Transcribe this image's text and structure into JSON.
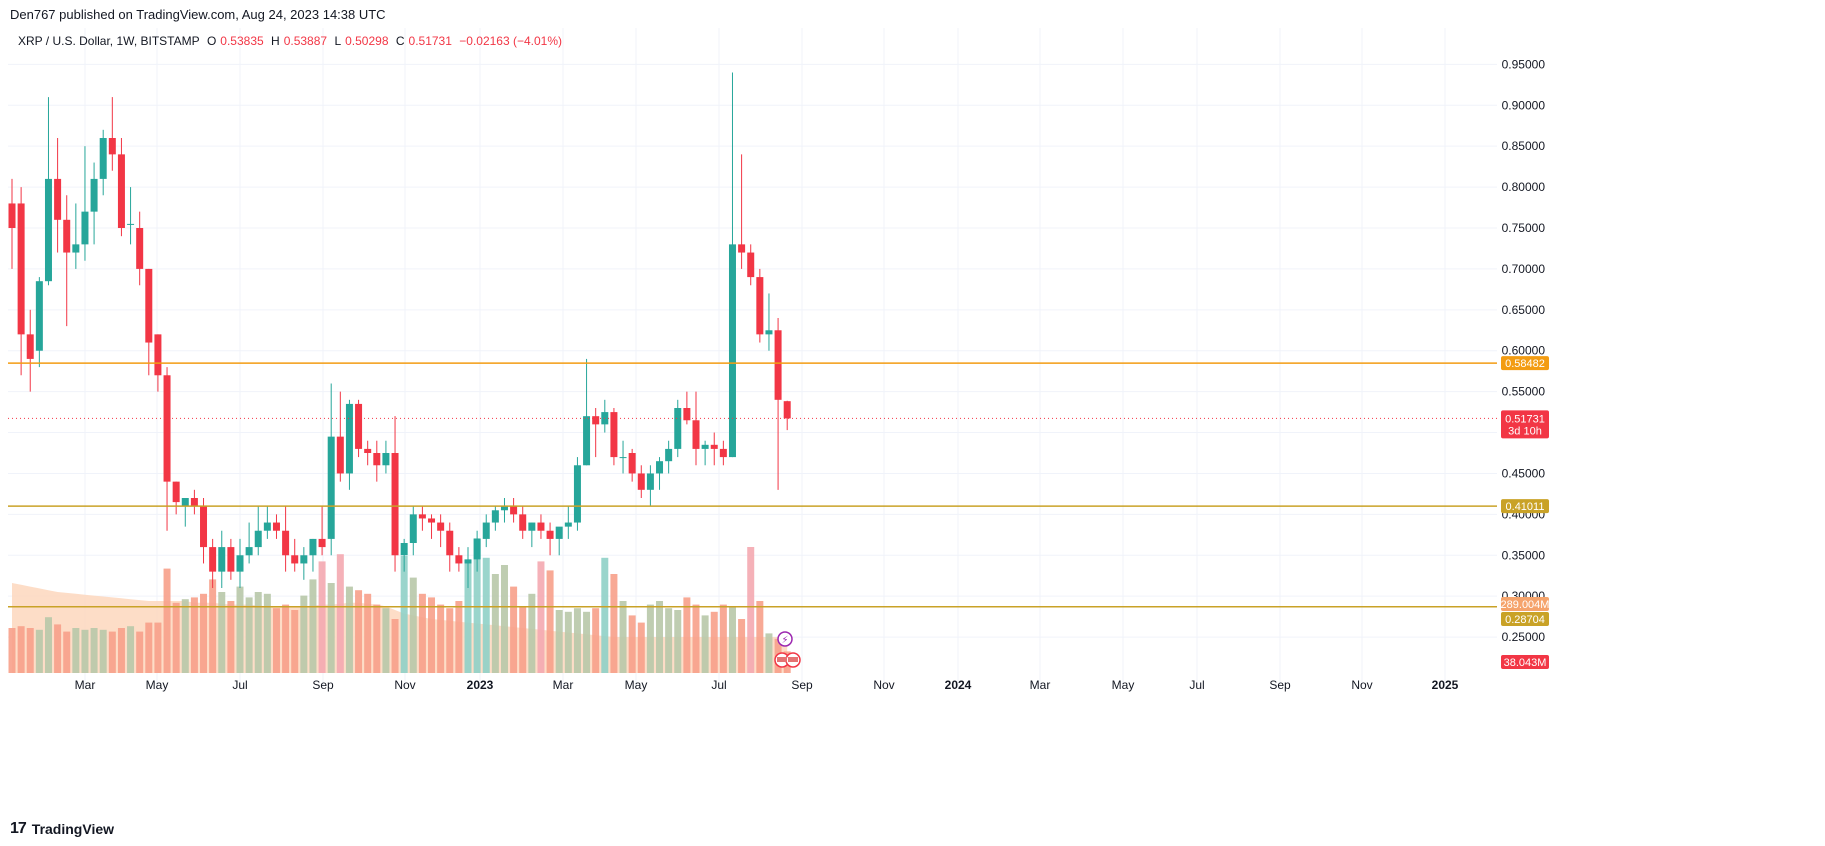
{
  "publisher_line": "Den767 published on TradingView.com, Aug 24, 2023 14:38 UTC",
  "legend": {
    "symbol": "XRP / U.S. Dollar, 1W, BITSTAMP",
    "open_label": "O",
    "open": "0.53835",
    "high_label": "H",
    "high": "0.53887",
    "low_label": "L",
    "low": "0.50298",
    "close_label": "C",
    "close": "0.51731",
    "change": "−0.02163 (−4.01%)"
  },
  "footer": {
    "brand": "TradingView",
    "logo_text": "17"
  },
  "colors": {
    "up": "#26a69a",
    "down": "#f23645",
    "level_orange": "#f39c12",
    "level_gold": "#c9a227",
    "volume_ma_fill": "#fdd7bd",
    "volume_up": "#b8c8a8",
    "volume_down": "#f7a08a"
  },
  "chart_data": {
    "type": "candlestick",
    "title": "",
    "y_axis": {
      "ylim": [
        0.2,
        0.97
      ],
      "ticks": [
        "0.25000",
        "0.30000",
        "0.35000",
        "0.40000",
        "0.45000",
        "0.50000",
        "0.55000",
        "0.60000",
        "0.65000",
        "0.70000",
        "0.75000",
        "0.80000",
        "0.85000",
        "0.90000",
        "0.95000"
      ],
      "grid": true,
      "position": "right"
    },
    "x_axis": {
      "ticks": [
        "Mar",
        "May",
        "Jul",
        "Sep",
        "Nov",
        "2023",
        "Mar",
        "May",
        "Jul",
        "Sep",
        "Nov",
        "2024",
        "Mar",
        "May",
        "Jul",
        "Sep",
        "Nov",
        "2025"
      ],
      "grid": true
    },
    "candles": [
      {
        "o": 0.78,
        "h": 0.81,
        "l": 0.7,
        "c": 0.75
      },
      {
        "o": 0.78,
        "h": 0.8,
        "l": 0.57,
        "c": 0.62
      },
      {
        "o": 0.62,
        "h": 0.65,
        "l": 0.55,
        "c": 0.59
      },
      {
        "o": 0.6,
        "h": 0.69,
        "l": 0.58,
        "c": 0.685
      },
      {
        "o": 0.685,
        "h": 0.91,
        "l": 0.68,
        "c": 0.81
      },
      {
        "o": 0.81,
        "h": 0.86,
        "l": 0.72,
        "c": 0.76
      },
      {
        "o": 0.76,
        "h": 0.79,
        "l": 0.63,
        "c": 0.72
      },
      {
        "o": 0.72,
        "h": 0.78,
        "l": 0.7,
        "c": 0.73
      },
      {
        "o": 0.73,
        "h": 0.85,
        "l": 0.71,
        "c": 0.77
      },
      {
        "o": 0.77,
        "h": 0.83,
        "l": 0.73,
        "c": 0.81
      },
      {
        "o": 0.81,
        "h": 0.87,
        "l": 0.79,
        "c": 0.86
      },
      {
        "o": 0.86,
        "h": 0.91,
        "l": 0.82,
        "c": 0.84
      },
      {
        "o": 0.84,
        "h": 0.86,
        "l": 0.74,
        "c": 0.75
      },
      {
        "o": 0.755,
        "h": 0.8,
        "l": 0.73,
        "c": 0.755
      },
      {
        "o": 0.75,
        "h": 0.77,
        "l": 0.68,
        "c": 0.7
      },
      {
        "o": 0.7,
        "h": 0.7,
        "l": 0.57,
        "c": 0.61
      },
      {
        "o": 0.62,
        "h": 0.62,
        "l": 0.55,
        "c": 0.57
      },
      {
        "o": 0.57,
        "h": 0.58,
        "l": 0.38,
        "c": 0.44
      },
      {
        "o": 0.44,
        "h": 0.44,
        "l": 0.4,
        "c": 0.415
      },
      {
        "o": 0.41,
        "h": 0.42,
        "l": 0.385,
        "c": 0.42
      },
      {
        "o": 0.42,
        "h": 0.43,
        "l": 0.4,
        "c": 0.41
      },
      {
        "o": 0.41,
        "h": 0.42,
        "l": 0.34,
        "c": 0.36
      },
      {
        "o": 0.36,
        "h": 0.37,
        "l": 0.31,
        "c": 0.33
      },
      {
        "o": 0.33,
        "h": 0.38,
        "l": 0.31,
        "c": 0.36
      },
      {
        "o": 0.36,
        "h": 0.37,
        "l": 0.32,
        "c": 0.33
      },
      {
        "o": 0.33,
        "h": 0.37,
        "l": 0.31,
        "c": 0.35
      },
      {
        "o": 0.35,
        "h": 0.39,
        "l": 0.34,
        "c": 0.36
      },
      {
        "o": 0.36,
        "h": 0.41,
        "l": 0.35,
        "c": 0.38
      },
      {
        "o": 0.38,
        "h": 0.41,
        "l": 0.37,
        "c": 0.39
      },
      {
        "o": 0.39,
        "h": 0.4,
        "l": 0.37,
        "c": 0.38
      },
      {
        "o": 0.38,
        "h": 0.41,
        "l": 0.33,
        "c": 0.35
      },
      {
        "o": 0.35,
        "h": 0.37,
        "l": 0.33,
        "c": 0.34
      },
      {
        "o": 0.34,
        "h": 0.36,
        "l": 0.32,
        "c": 0.35
      },
      {
        "o": 0.35,
        "h": 0.37,
        "l": 0.33,
        "c": 0.37
      },
      {
        "o": 0.37,
        "h": 0.41,
        "l": 0.35,
        "c": 0.36
      },
      {
        "o": 0.37,
        "h": 0.56,
        "l": 0.35,
        "c": 0.495
      },
      {
        "o": 0.495,
        "h": 0.55,
        "l": 0.44,
        "c": 0.45
      },
      {
        "o": 0.45,
        "h": 0.54,
        "l": 0.43,
        "c": 0.535
      },
      {
        "o": 0.535,
        "h": 0.54,
        "l": 0.47,
        "c": 0.48
      },
      {
        "o": 0.48,
        "h": 0.49,
        "l": 0.46,
        "c": 0.475
      },
      {
        "o": 0.475,
        "h": 0.49,
        "l": 0.44,
        "c": 0.46
      },
      {
        "o": 0.46,
        "h": 0.49,
        "l": 0.45,
        "c": 0.475
      },
      {
        "o": 0.475,
        "h": 0.52,
        "l": 0.33,
        "c": 0.35
      },
      {
        "o": 0.35,
        "h": 0.37,
        "l": 0.33,
        "c": 0.365
      },
      {
        "o": 0.365,
        "h": 0.41,
        "l": 0.35,
        "c": 0.4
      },
      {
        "o": 0.4,
        "h": 0.41,
        "l": 0.38,
        "c": 0.395
      },
      {
        "o": 0.395,
        "h": 0.4,
        "l": 0.37,
        "c": 0.39
      },
      {
        "o": 0.39,
        "h": 0.4,
        "l": 0.36,
        "c": 0.38
      },
      {
        "o": 0.38,
        "h": 0.39,
        "l": 0.33,
        "c": 0.35
      },
      {
        "o": 0.35,
        "h": 0.36,
        "l": 0.33,
        "c": 0.34
      },
      {
        "o": 0.34,
        "h": 0.36,
        "l": 0.31,
        "c": 0.345
      },
      {
        "o": 0.345,
        "h": 0.38,
        "l": 0.33,
        "c": 0.37
      },
      {
        "o": 0.37,
        "h": 0.4,
        "l": 0.36,
        "c": 0.39
      },
      {
        "o": 0.39,
        "h": 0.41,
        "l": 0.38,
        "c": 0.405
      },
      {
        "o": 0.405,
        "h": 0.42,
        "l": 0.39,
        "c": 0.41
      },
      {
        "o": 0.41,
        "h": 0.42,
        "l": 0.39,
        "c": 0.4
      },
      {
        "o": 0.4,
        "h": 0.41,
        "l": 0.37,
        "c": 0.38
      },
      {
        "o": 0.38,
        "h": 0.39,
        "l": 0.36,
        "c": 0.39
      },
      {
        "o": 0.39,
        "h": 0.4,
        "l": 0.37,
        "c": 0.38
      },
      {
        "o": 0.38,
        "h": 0.39,
        "l": 0.35,
        "c": 0.37
      },
      {
        "o": 0.37,
        "h": 0.38,
        "l": 0.35,
        "c": 0.385
      },
      {
        "o": 0.385,
        "h": 0.41,
        "l": 0.37,
        "c": 0.39
      },
      {
        "o": 0.39,
        "h": 0.47,
        "l": 0.38,
        "c": 0.46
      },
      {
        "o": 0.46,
        "h": 0.59,
        "l": 0.46,
        "c": 0.52
      },
      {
        "o": 0.52,
        "h": 0.53,
        "l": 0.47,
        "c": 0.51
      },
      {
        "o": 0.51,
        "h": 0.54,
        "l": 0.5,
        "c": 0.525
      },
      {
        "o": 0.525,
        "h": 0.53,
        "l": 0.46,
        "c": 0.47
      },
      {
        "o": 0.47,
        "h": 0.49,
        "l": 0.45,
        "c": 0.47
      },
      {
        "o": 0.475,
        "h": 0.48,
        "l": 0.44,
        "c": 0.45
      },
      {
        "o": 0.45,
        "h": 0.46,
        "l": 0.42,
        "c": 0.43
      },
      {
        "o": 0.43,
        "h": 0.46,
        "l": 0.41,
        "c": 0.45
      },
      {
        "o": 0.45,
        "h": 0.47,
        "l": 0.43,
        "c": 0.465
      },
      {
        "o": 0.465,
        "h": 0.49,
        "l": 0.45,
        "c": 0.48
      },
      {
        "o": 0.48,
        "h": 0.54,
        "l": 0.47,
        "c": 0.53
      },
      {
        "o": 0.53,
        "h": 0.55,
        "l": 0.51,
        "c": 0.515
      },
      {
        "o": 0.515,
        "h": 0.55,
        "l": 0.46,
        "c": 0.48
      },
      {
        "o": 0.48,
        "h": 0.49,
        "l": 0.46,
        "c": 0.485
      },
      {
        "o": 0.485,
        "h": 0.5,
        "l": 0.46,
        "c": 0.48
      },
      {
        "o": 0.48,
        "h": 0.49,
        "l": 0.46,
        "c": 0.47
      },
      {
        "o": 0.47,
        "h": 0.94,
        "l": 0.47,
        "c": 0.73
      },
      {
        "o": 0.73,
        "h": 0.84,
        "l": 0.7,
        "c": 0.72
      },
      {
        "o": 0.72,
        "h": 0.73,
        "l": 0.68,
        "c": 0.69
      },
      {
        "o": 0.69,
        "h": 0.7,
        "l": 0.61,
        "c": 0.62
      },
      {
        "o": 0.62,
        "h": 0.67,
        "l": 0.6,
        "c": 0.625
      },
      {
        "o": 0.625,
        "h": 0.64,
        "l": 0.43,
        "c": 0.54
      },
      {
        "o": 0.53835,
        "h": 0.53887,
        "l": 0.50298,
        "c": 0.51731
      }
    ],
    "volume": {
      "label": "38.043M",
      "ma_label": "289.004M",
      "bars": [
        0.25,
        0.26,
        0.25,
        0.24,
        0.31,
        0.27,
        0.23,
        0.25,
        0.24,
        0.25,
        0.24,
        0.23,
        0.25,
        0.26,
        0.23,
        0.28,
        0.28,
        0.58,
        0.39,
        0.41,
        0.42,
        0.44,
        0.52,
        0.45,
        0.4,
        0.48,
        0.42,
        0.45,
        0.44,
        0.36,
        0.38,
        0.35,
        0.43,
        0.52,
        0.62,
        0.5,
        0.66,
        0.48,
        0.46,
        0.44,
        0.38,
        0.36,
        0.3,
        0.65,
        0.53,
        0.44,
        0.42,
        0.38,
        0.36,
        0.4,
        0.62,
        0.75,
        0.64,
        0.55,
        0.6,
        0.48,
        0.37,
        0.44,
        0.62,
        0.57,
        0.35,
        0.34,
        0.36,
        0.34,
        0.36,
        0.64,
        0.55,
        0.4,
        0.32,
        0.28,
        0.38,
        0.4,
        0.36,
        0.35,
        0.42,
        0.38,
        0.32,
        0.34,
        0.38,
        0.37,
        0.3,
        0.7,
        0.4,
        0.22,
        0.19,
        0.12
      ],
      "ma": [
        0.5,
        0.49,
        0.48,
        0.47,
        0.46,
        0.45,
        0.445,
        0.44,
        0.435,
        0.43,
        0.425,
        0.42,
        0.415,
        0.41,
        0.405,
        0.4,
        0.4,
        0.4,
        0.4,
        0.4,
        0.39,
        0.39,
        0.39,
        0.385,
        0.38,
        0.38,
        0.38,
        0.375,
        0.37,
        0.37,
        0.37,
        0.37,
        0.37,
        0.375,
        0.38,
        0.38,
        0.385,
        0.39,
        0.39,
        0.385,
        0.38,
        0.37,
        0.35,
        0.33,
        0.32,
        0.31,
        0.3,
        0.295,
        0.29,
        0.285,
        0.28,
        0.275,
        0.27,
        0.265,
        0.26,
        0.255,
        0.25,
        0.245,
        0.24,
        0.235,
        0.23,
        0.225,
        0.22,
        0.215,
        0.21,
        0.205,
        0.2,
        0.2,
        0.2,
        0.2,
        0.2,
        0.2,
        0.2,
        0.2,
        0.2,
        0.2,
        0.2,
        0.2,
        0.2,
        0.2,
        0.2,
        0.2,
        0.2,
        0.2,
        0.2,
        0.2
      ]
    },
    "levels": [
      {
        "price": 0.58482,
        "label": "0.58482",
        "color": "#f39c12"
      },
      {
        "price": 0.41011,
        "label": "0.41011",
        "color": "#c9a227"
      },
      {
        "price": 0.28704,
        "label": "0.28704",
        "color": "#c9a227"
      }
    ],
    "last_price": {
      "label": "0.51731",
      "countdown": "3d 10h"
    }
  }
}
